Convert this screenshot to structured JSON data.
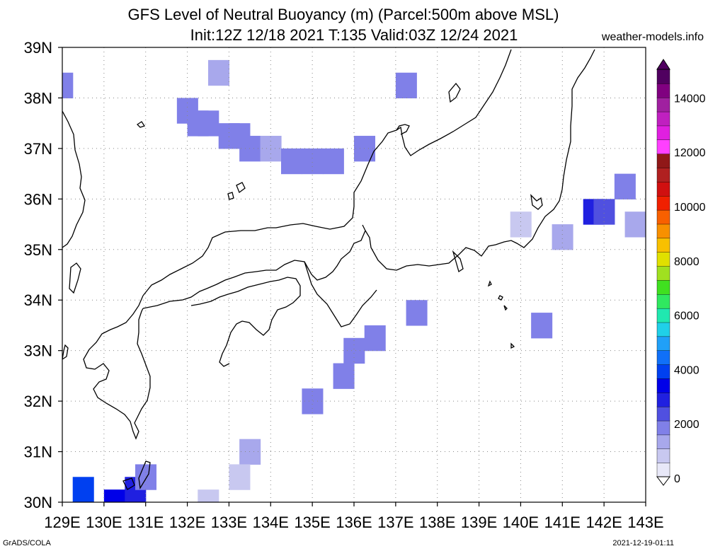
{
  "title_line1": "GFS Level of Neutral Buoyancy (m) (Parcel:500m above MSL)",
  "title_line2": "Init:12Z 12/18 2021 T:135 Valid:03Z 12/24 2021",
  "credit": "weather-models.info",
  "footer_left": "GrADS/COLA",
  "footer_right": "2021-12-19-01:11",
  "lon_labels": [
    "129E",
    "130E",
    "131E",
    "132E",
    "133E",
    "134E",
    "135E",
    "136E",
    "137E",
    "138E",
    "139E",
    "140E",
    "141E",
    "142E",
    "143E"
  ],
  "lat_labels": [
    "30N",
    "31N",
    "32N",
    "33N",
    "34N",
    "35N",
    "36N",
    "37N",
    "38N",
    "39N"
  ],
  "colorbar_labels": [
    "0",
    "2000",
    "4000",
    "6000",
    "8000",
    "10000",
    "12000",
    "14000"
  ],
  "colorbar_colors": [
    "#e8e8f8",
    "#c8c8f0",
    "#a8a8ec",
    "#8080e8",
    "#5050e0",
    "#2020e0",
    "#0000e8",
    "#0040f0",
    "#1070f8",
    "#20a0f8",
    "#20d0e8",
    "#20e8b0",
    "#30e860",
    "#40e020",
    "#a0e020",
    "#e0e000",
    "#f8c000",
    "#f89000",
    "#f86000",
    "#f02000",
    "#d01010",
    "#b02020",
    "#901818",
    "#ff40ff",
    "#e020e0",
    "#c020c0",
    "#a020a0",
    "#800080",
    "#500060"
  ],
  "chart_data": {
    "type": "heatmap",
    "title": "GFS Level of Neutral Buoyancy (m) (Parcel:500m above MSL)",
    "subtitle": "Init:12Z 12/18 2021 T:135 Valid:03Z 12/24 2021",
    "xlim": [
      129,
      143
    ],
    "ylim": [
      30,
      39
    ],
    "value_range": [
      0,
      15000
    ],
    "grid": true,
    "legend_position": "right",
    "cells": [
      {
        "lon": 129.0,
        "lat": 38.25,
        "value": 1900
      },
      {
        "lon": 132.75,
        "lat": 38.5,
        "value": 1500
      },
      {
        "lon": 132.0,
        "lat": 37.75,
        "value": 1900
      },
      {
        "lon": 132.25,
        "lat": 37.5,
        "value": 1600
      },
      {
        "lon": 132.5,
        "lat": 37.5,
        "value": 1600
      },
      {
        "lon": 133.0,
        "lat": 37.25,
        "value": 1700
      },
      {
        "lon": 133.25,
        "lat": 37.25,
        "value": 1900
      },
      {
        "lon": 133.5,
        "lat": 37.0,
        "value": 1800
      },
      {
        "lon": 134.0,
        "lat": 37.0,
        "value": 1500
      },
      {
        "lon": 134.5,
        "lat": 36.75,
        "value": 1800
      },
      {
        "lon": 135.0,
        "lat": 36.75,
        "value": 1800
      },
      {
        "lon": 135.5,
        "lat": 36.75,
        "value": 1900
      },
      {
        "lon": 136.25,
        "lat": 37.0,
        "value": 2000
      },
      {
        "lon": 137.25,
        "lat": 38.25,
        "value": 1800
      },
      {
        "lon": 140.0,
        "lat": 35.5,
        "value": 800
      },
      {
        "lon": 141.0,
        "lat": 35.25,
        "value": 1500
      },
      {
        "lon": 141.75,
        "lat": 35.75,
        "value": 2800
      },
      {
        "lon": 142.0,
        "lat": 35.75,
        "value": 2400
      },
      {
        "lon": 142.5,
        "lat": 36.25,
        "value": 1900
      },
      {
        "lon": 142.75,
        "lat": 35.5,
        "value": 1400
      },
      {
        "lon": 137.5,
        "lat": 33.75,
        "value": 1800
      },
      {
        "lon": 140.5,
        "lat": 33.5,
        "value": 1800
      },
      {
        "lon": 136.5,
        "lat": 33.25,
        "value": 1800
      },
      {
        "lon": 136.0,
        "lat": 33.0,
        "value": 1600
      },
      {
        "lon": 135.75,
        "lat": 32.5,
        "value": 1900
      },
      {
        "lon": 135.0,
        "lat": 32.0,
        "value": 1800
      },
      {
        "lon": 133.5,
        "lat": 31.0,
        "value": 1200
      },
      {
        "lon": 133.25,
        "lat": 30.5,
        "value": 900
      },
      {
        "lon": 132.5,
        "lat": 30.0,
        "value": 900
      },
      {
        "lon": 129.5,
        "lat": 30.25,
        "value": 3900
      },
      {
        "lon": 130.25,
        "lat": 30.0,
        "value": 3300
      },
      {
        "lon": 130.75,
        "lat": 30.25,
        "value": 2600
      },
      {
        "lon": 131.0,
        "lat": 30.5,
        "value": 1600
      }
    ]
  }
}
